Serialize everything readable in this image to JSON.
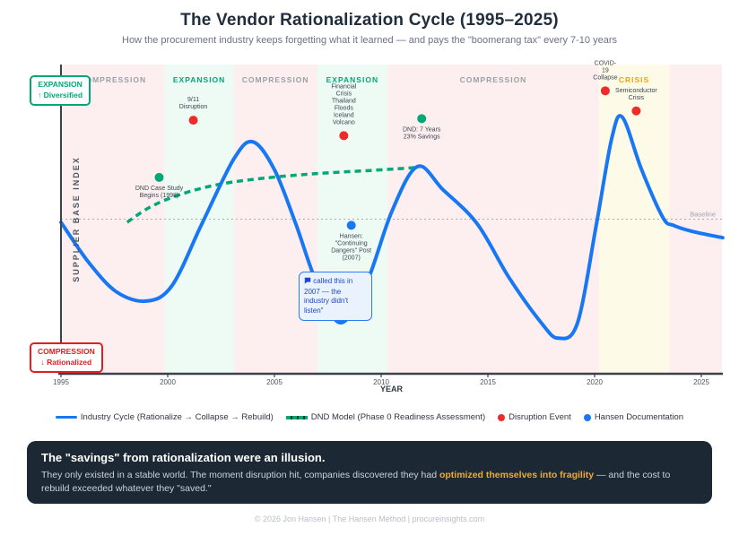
{
  "header": {
    "title": "The Vendor Rationalization Cycle (1995–2025)",
    "subtitle": "How the procurement industry keeps forgetting what it learned — and pays the \"boomerang tax\" every 7-10 years"
  },
  "chart_data": {
    "type": "line",
    "title": "The Vendor Rationalization Cycle (1995–2025)",
    "xlabel": "YEAR",
    "ylabel": "SUPPLIER BASE INDEX",
    "x_ticks": [
      1995,
      2000,
      2005,
      2010,
      2015,
      2020,
      2025
    ],
    "x_range": [
      1995,
      2026
    ],
    "y_range": [
      0,
      200
    ],
    "grid": false,
    "baseline": {
      "value": 100,
      "label": "Baseline"
    },
    "phases": [
      {
        "label": "COMPRESSION",
        "kind": "compression",
        "from": 1995.0,
        "to": 1999.85
      },
      {
        "label": "EXPANSION",
        "kind": "expansion",
        "from": 1999.85,
        "to": 2003.1
      },
      {
        "label": "COMPRESSION",
        "kind": "compression",
        "from": 2003.1,
        "to": 2007.0
      },
      {
        "label": "EXPANSION",
        "kind": "expansion",
        "from": 2007.0,
        "to": 2010.3
      },
      {
        "label": "COMPRESSION",
        "kind": "compression",
        "from": 2010.3,
        "to": 2020.2
      },
      {
        "label": "CRISIS",
        "kind": "crisis",
        "from": 2020.2,
        "to": 2023.5
      },
      {
        "label": "",
        "kind": "compression",
        "from": 2023.5,
        "to": 2026.0
      }
    ],
    "series": [
      {
        "name": "Industry Cycle (Rationalize → Collapse → Rebuild)",
        "style": "solid",
        "color": "#1877f2",
        "points": [
          [
            1995.0,
            98
          ],
          [
            1996.3,
            72
          ],
          [
            1997.6,
            53
          ],
          [
            1999.0,
            47
          ],
          [
            2000.2,
            57
          ],
          [
            2001.6,
            97
          ],
          [
            2003.1,
            139
          ],
          [
            2004.0,
            150
          ],
          [
            2005.0,
            132
          ],
          [
            2006.0,
            97
          ],
          [
            2007.0,
            58
          ],
          [
            2008.1,
            33
          ],
          [
            2009.3,
            58
          ],
          [
            2010.5,
            105
          ],
          [
            2011.7,
            134
          ],
          [
            2012.9,
            119
          ],
          [
            2014.5,
            97
          ],
          [
            2016.0,
            62
          ],
          [
            2017.5,
            33
          ],
          [
            2018.3,
            23
          ],
          [
            2019.2,
            33
          ],
          [
            2020.1,
            98
          ],
          [
            2020.8,
            152
          ],
          [
            2021.3,
            166
          ],
          [
            2022.2,
            132
          ],
          [
            2023.2,
            101
          ],
          [
            2023.7,
            96
          ],
          [
            2024.6,
            92
          ],
          [
            2026.0,
            88
          ]
        ]
      },
      {
        "name": "DND Model (Phase 0 Readiness Assessment)",
        "style": "dashed",
        "color": "#00a878",
        "points": [
          [
            1998.1,
            98
          ],
          [
            1999.2,
            108
          ],
          [
            2000.6,
            116
          ],
          [
            2002.4,
            122.5
          ],
          [
            2004.5,
            126.5
          ],
          [
            2007.0,
            129.5
          ],
          [
            2009.5,
            131.5
          ],
          [
            2011.8,
            133.5
          ]
        ]
      }
    ],
    "events": [
      {
        "year": 2001.2,
        "value": 164,
        "label": [
          "9/11",
          "Disruption"
        ]
      },
      {
        "year": 2008.25,
        "value": 154,
        "label": [
          "Financial",
          "Crisis",
          "Thailand",
          "Floods",
          "Iceland",
          "Volcano"
        ]
      },
      {
        "year": 2020.5,
        "value": 183,
        "label": [
          "COVID-",
          "19",
          "Collapse"
        ]
      },
      {
        "year": 2021.95,
        "value": 170,
        "label": [
          "Semiconductor",
          "Crisis"
        ]
      }
    ],
    "dnd_markers": [
      {
        "year": 1999.6,
        "value": 127,
        "label": [
          "DND Case Study",
          "Begins (1998)"
        ]
      },
      {
        "year": 2011.9,
        "value": 165,
        "label": [
          "DND: 7 Years",
          "23% Savings"
        ]
      }
    ],
    "hansen_markers": [
      {
        "year": 2008.6,
        "value": 96,
        "label": [
          "Hansen:",
          "\"Continuing",
          "Dangers\" Post",
          "(2007)"
        ]
      }
    ],
    "colors": {
      "industry_line": "#1877f2",
      "dnd_line": "#00a878",
      "event_dot": "#ee2b2b",
      "hansen_dot": "#1877f2",
      "dnd_dot": "#00a878",
      "band_compression": "#fdeff0",
      "band_expansion": "#eefaf4",
      "band_crisis": "#fdfae8",
      "label_compression": "#9aa0a6",
      "label_expansion": "#00a878",
      "label_crisis": "#f0a500",
      "axis": "#39424e",
      "annotation_text": "#3d4550",
      "baseline": "#aaaaaa"
    }
  },
  "chart_labels": {
    "expansion_box": [
      "EXPANSION",
      "↑ Diversified"
    ],
    "compression_box": [
      "COMPRESSION",
      "↓ Rationalized"
    ]
  },
  "callout": {
    "text": "called this in 2007 — the industry didn't listen\""
  },
  "legend": [
    {
      "label": "Industry Cycle (Rationalize → Collapse → Rebuild)",
      "swatch": "line",
      "color": "#1877f2"
    },
    {
      "label": "DND Model (Phase 0 Readiness Assessment)",
      "swatch": "dash",
      "color": "#00a878"
    },
    {
      "label": "Disruption Event",
      "swatch": "dot",
      "color": "#ee2b2b"
    },
    {
      "label": "Hansen Documentation",
      "swatch": "dot",
      "color": "#1877f2"
    }
  ],
  "insight_panel": {
    "title": "The \"savings\" from rationalization were an illusion.",
    "body_prefix": "They only existed in a stable world. The moment disruption hit, companies discovered they had ",
    "highlight": "optimized themselves into fragility",
    "body_suffix": " — and the cost to rebuild exceeded whatever they \"saved.\""
  },
  "footer": "© 2026 Jon Hansen | The Hansen Method | procureinsights.com"
}
